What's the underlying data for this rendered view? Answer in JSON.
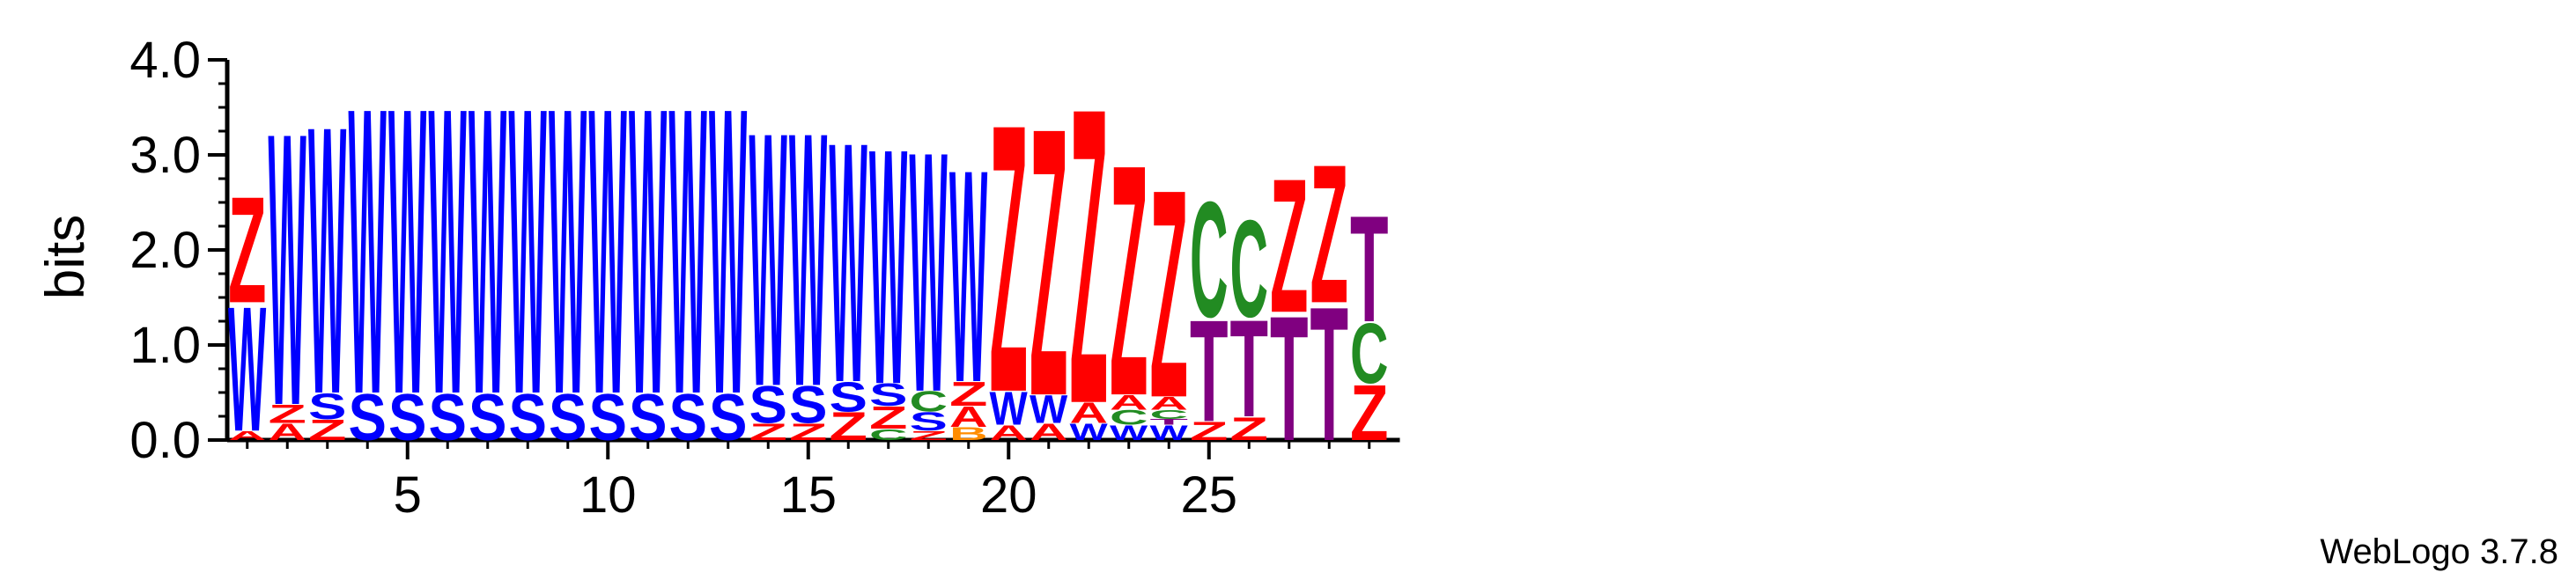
{
  "footer": {
    "credit": "WebLogo 3.7.8"
  },
  "chart_data": {
    "type": "sequence_logo",
    "ylabel": "bits",
    "ylim": [
      0,
      4.0
    ],
    "y_ticks": [
      "0.0",
      "1.0",
      "2.0",
      "3.0",
      "4.0"
    ],
    "y_tick_values": [
      0,
      1,
      2,
      3,
      4
    ],
    "x_ticks": [
      5,
      10,
      15,
      20,
      25
    ],
    "colors": {
      "Z": "#ff0000",
      "A": "#ff0000",
      "W": "#0000ff",
      "S": "#0000ff",
      "C": "#228b22",
      "T": "#800080",
      "B": "#ff8c00"
    },
    "positions": [
      {
        "pos": 1,
        "stack": [
          [
            "A",
            0.1
          ],
          [
            "W",
            1.35
          ],
          [
            "Z",
            1.15
          ]
        ]
      },
      {
        "pos": 2,
        "stack": [
          [
            "A",
            0.18
          ],
          [
            "Z",
            0.2
          ],
          [
            "W",
            2.95
          ]
        ]
      },
      {
        "pos": 3,
        "stack": [
          [
            "Z",
            0.22
          ],
          [
            "S",
            0.28
          ],
          [
            "W",
            2.9
          ]
        ]
      },
      {
        "pos": 4,
        "stack": [
          [
            "S",
            0.5
          ],
          [
            "W",
            3.1
          ]
        ]
      },
      {
        "pos": 5,
        "stack": [
          [
            "S",
            0.5
          ],
          [
            "W",
            3.1
          ]
        ]
      },
      {
        "pos": 6,
        "stack": [
          [
            "S",
            0.5
          ],
          [
            "W",
            3.1
          ]
        ]
      },
      {
        "pos": 7,
        "stack": [
          [
            "S",
            0.5
          ],
          [
            "W",
            3.1
          ]
        ]
      },
      {
        "pos": 8,
        "stack": [
          [
            "S",
            0.5
          ],
          [
            "W",
            3.1
          ]
        ]
      },
      {
        "pos": 9,
        "stack": [
          [
            "S",
            0.5
          ],
          [
            "W",
            3.1
          ]
        ]
      },
      {
        "pos": 10,
        "stack": [
          [
            "S",
            0.5
          ],
          [
            "W",
            3.1
          ]
        ]
      },
      {
        "pos": 11,
        "stack": [
          [
            "S",
            0.5
          ],
          [
            "W",
            3.1
          ]
        ]
      },
      {
        "pos": 12,
        "stack": [
          [
            "S",
            0.5
          ],
          [
            "W",
            3.1
          ]
        ]
      },
      {
        "pos": 13,
        "stack": [
          [
            "S",
            0.5
          ],
          [
            "W",
            3.1
          ]
        ]
      },
      {
        "pos": 14,
        "stack": [
          [
            "Z",
            0.18
          ],
          [
            "S",
            0.4
          ],
          [
            "W",
            2.75
          ]
        ]
      },
      {
        "pos": 15,
        "stack": [
          [
            "Z",
            0.18
          ],
          [
            "S",
            0.4
          ],
          [
            "W",
            2.75
          ]
        ]
      },
      {
        "pos": 16,
        "stack": [
          [
            "Z",
            0.3
          ],
          [
            "S",
            0.32
          ],
          [
            "W",
            2.6
          ]
        ]
      },
      {
        "pos": 17,
        "stack": [
          [
            "C",
            0.12
          ],
          [
            "Z",
            0.24
          ],
          [
            "S",
            0.24
          ],
          [
            "W",
            2.55
          ]
        ]
      },
      {
        "pos": 18,
        "stack": [
          [
            "Z",
            0.1
          ],
          [
            "S",
            0.2
          ],
          [
            "C",
            0.22
          ],
          [
            "W",
            2.6
          ]
        ]
      },
      {
        "pos": 19,
        "stack": [
          [
            "B",
            0.14
          ],
          [
            "A",
            0.22
          ],
          [
            "Z",
            0.26
          ],
          [
            "W",
            2.3
          ]
        ]
      },
      {
        "pos": 20,
        "stack": [
          [
            "A",
            0.16
          ],
          [
            "W",
            0.36
          ],
          [
            "Z",
            2.9
          ]
        ]
      },
      {
        "pos": 21,
        "stack": [
          [
            "A",
            0.18
          ],
          [
            "W",
            0.3
          ],
          [
            "Z",
            2.9
          ]
        ]
      },
      {
        "pos": 22,
        "stack": [
          [
            "W",
            0.18
          ],
          [
            "A",
            0.22
          ],
          [
            "Z",
            3.2
          ]
        ]
      },
      {
        "pos": 23,
        "stack": [
          [
            "W",
            0.16
          ],
          [
            "C",
            0.16
          ],
          [
            "A",
            0.16
          ],
          [
            "Z",
            2.5
          ]
        ]
      },
      {
        "pos": 24,
        "stack": [
          [
            "W",
            0.16
          ],
          [
            "T",
            0.06
          ],
          [
            "C",
            0.1
          ],
          [
            "A",
            0.14
          ],
          [
            "Z",
            2.25
          ]
        ]
      },
      {
        "pos": 25,
        "stack": [
          [
            "Z",
            0.2
          ],
          [
            "T",
            1.1
          ],
          [
            "C",
            1.25
          ]
        ]
      },
      {
        "pos": 26,
        "stack": [
          [
            "Z",
            0.25
          ],
          [
            "T",
            1.05
          ],
          [
            "C",
            1.05
          ]
        ]
      },
      {
        "pos": 27,
        "stack": [
          [
            "T",
            1.35
          ],
          [
            "Z",
            1.45
          ]
        ]
      },
      {
        "pos": 28,
        "stack": [
          [
            "T",
            1.45
          ],
          [
            "Z",
            1.5
          ]
        ]
      },
      {
        "pos": 29,
        "stack": [
          [
            "Z",
            0.6
          ],
          [
            "C",
            0.65
          ],
          [
            "T",
            1.15
          ]
        ]
      }
    ]
  }
}
